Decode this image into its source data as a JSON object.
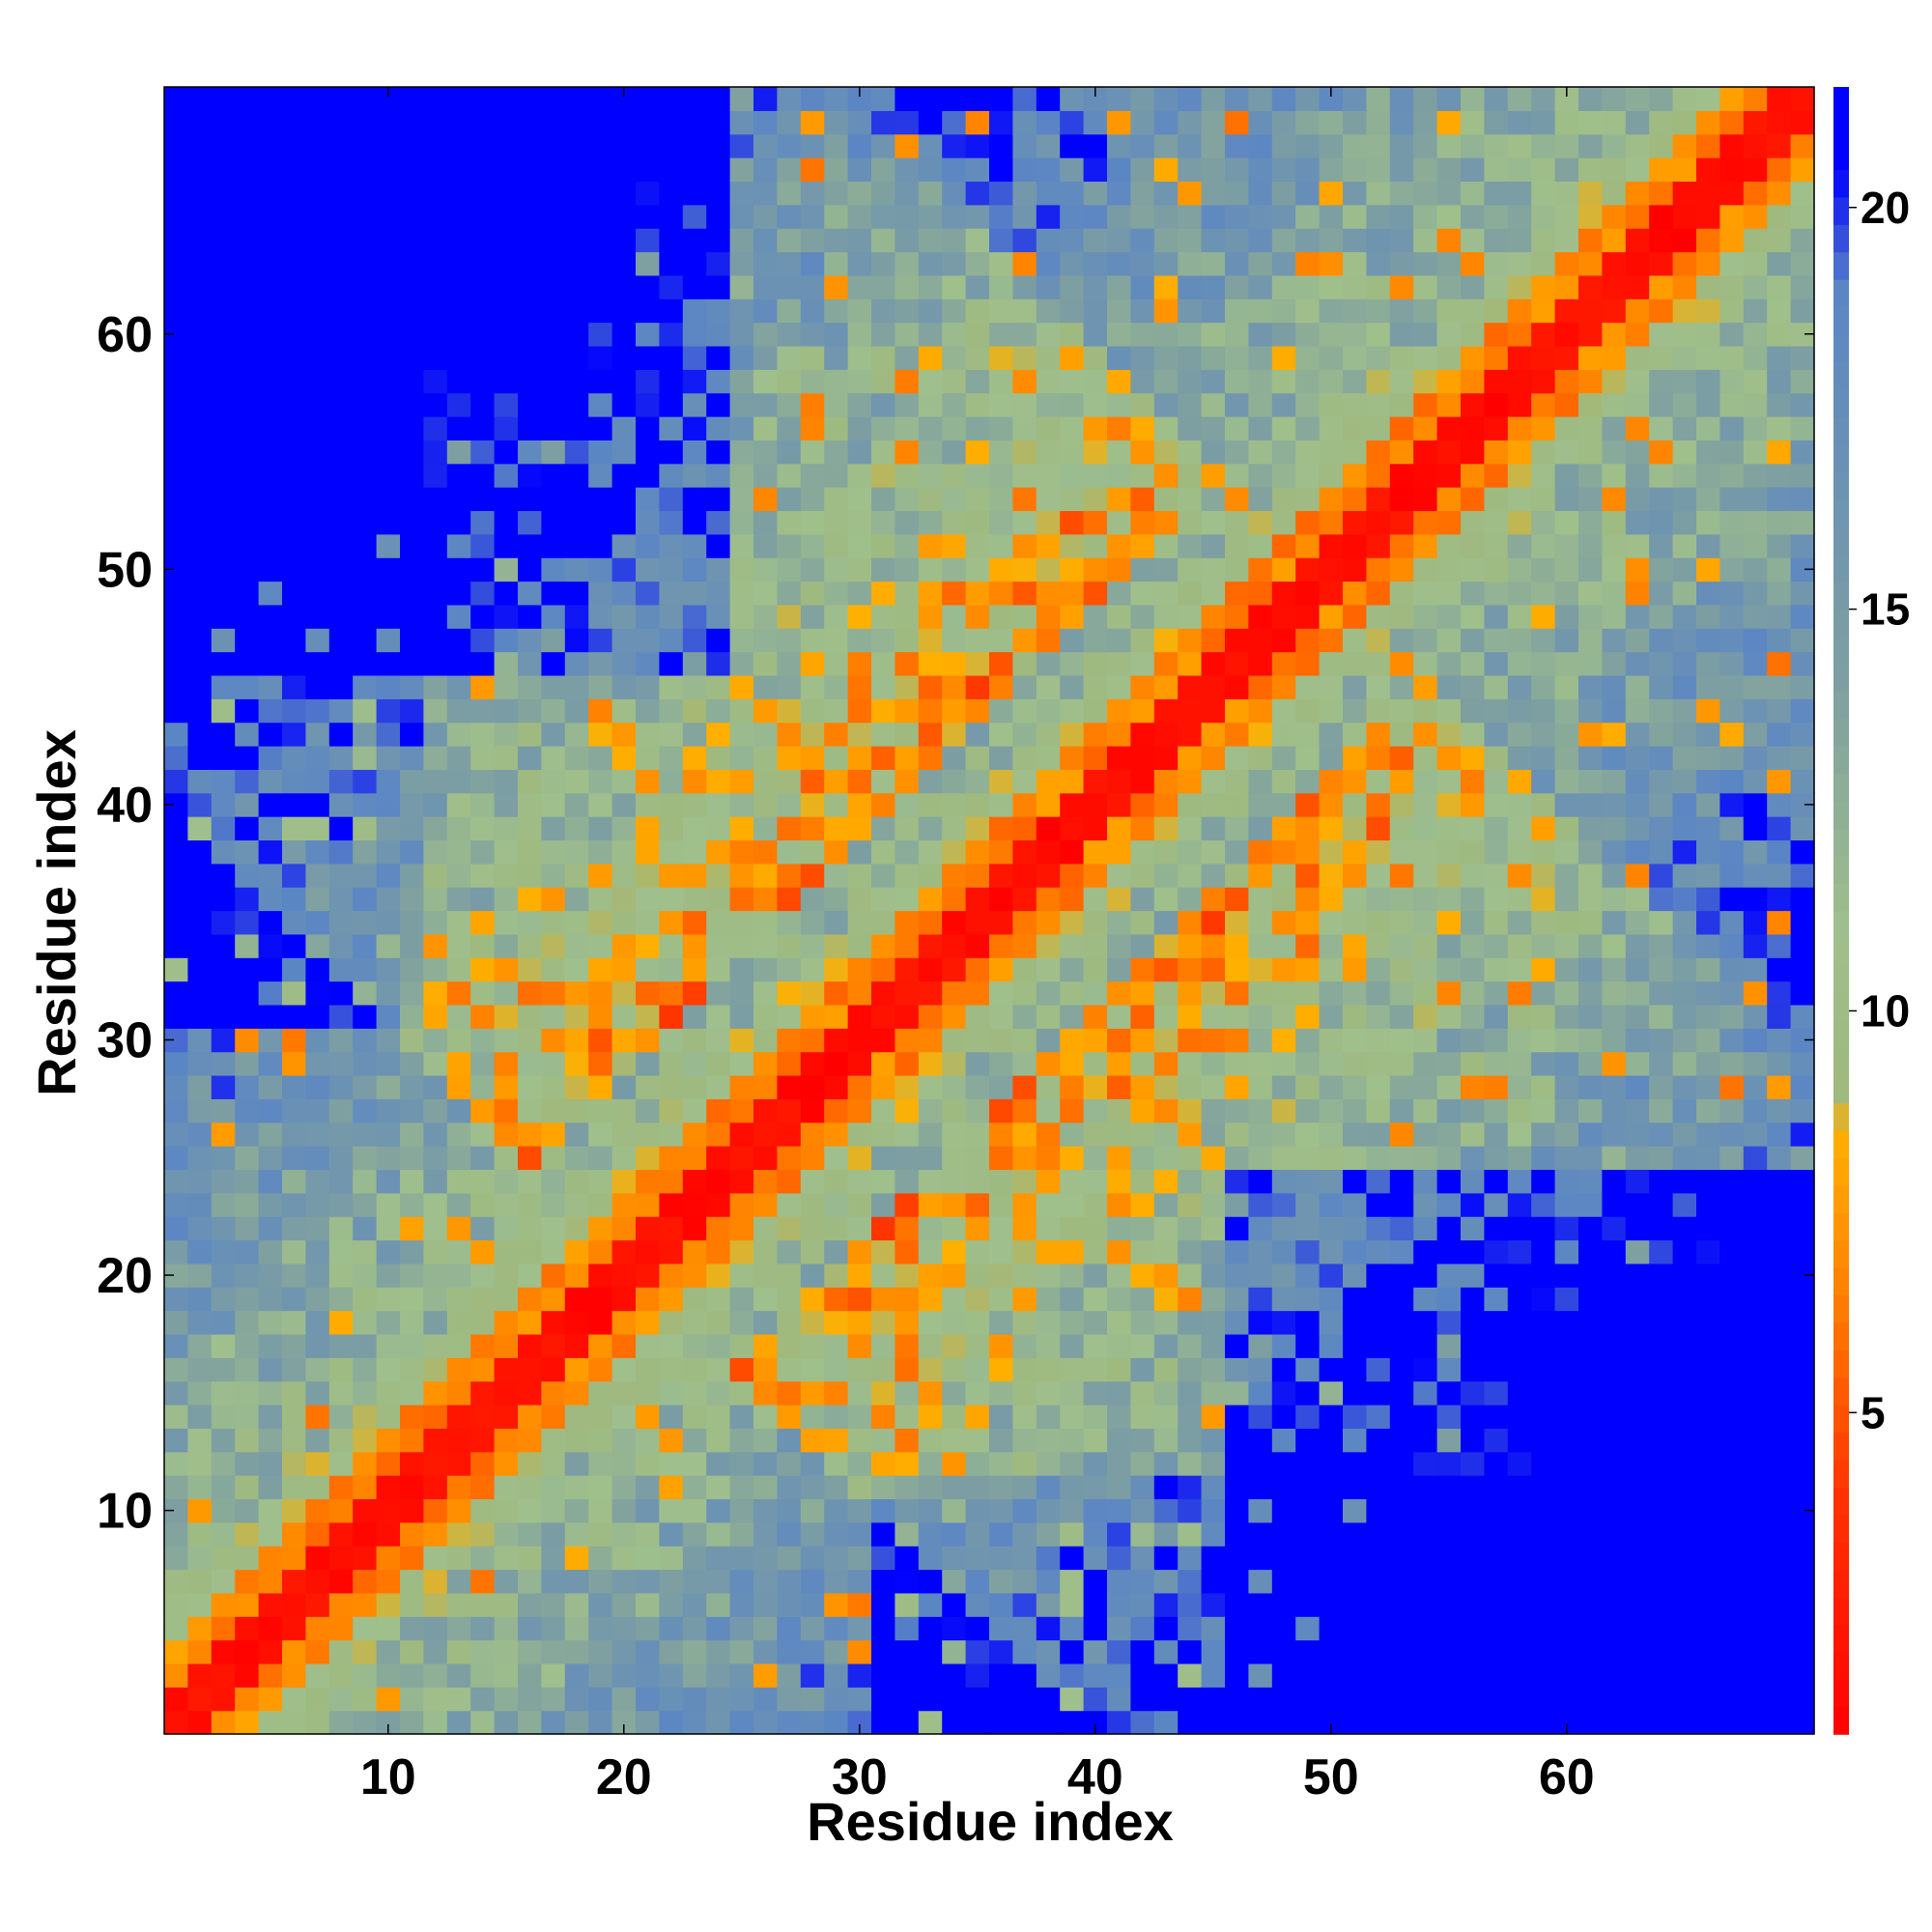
{
  "chart_data": {
    "type": "heatmap",
    "title": "",
    "xlabel": "Residue index",
    "ylabel": "Residue index",
    "n_residues": 70,
    "xlim": [
      0.5,
      70.5
    ],
    "ylim": [
      0.5,
      70.5
    ],
    "x_ticks": [
      10,
      20,
      30,
      40,
      50,
      60
    ],
    "y_ticks": [
      10,
      20,
      30,
      40,
      50,
      60
    ],
    "colorbar": {
      "range": [
        1,
        21.5
      ],
      "ticks": [
        5,
        10,
        15,
        20
      ],
      "stops": [
        {
          "value": 1,
          "color": "#ff0000"
        },
        {
          "value": 4,
          "color": "#ff3300"
        },
        {
          "value": 6.5,
          "color": "#ff8000"
        },
        {
          "value": 8.5,
          "color": "#ffb000"
        },
        {
          "value": 9,
          "color": "#9fb97f"
        },
        {
          "value": 11,
          "color": "#9fbf8c"
        },
        {
          "value": 14,
          "color": "#7fa0a0"
        },
        {
          "value": 19,
          "color": "#5b86c4"
        },
        {
          "value": 20.5,
          "color": "#0000ff"
        },
        {
          "value": 21.5,
          "color": "#0000ff"
        }
      ]
    },
    "colors": {
      "contact": "#ff0000",
      "near": "#ff7f00",
      "mid": "#a0b880",
      "far": "#5f88c0",
      "none": "#0000ff"
    },
    "legend": "colorbar-right",
    "grid": false,
    "values_description_source": "distance map values estimated per residue pair from colour"
  }
}
